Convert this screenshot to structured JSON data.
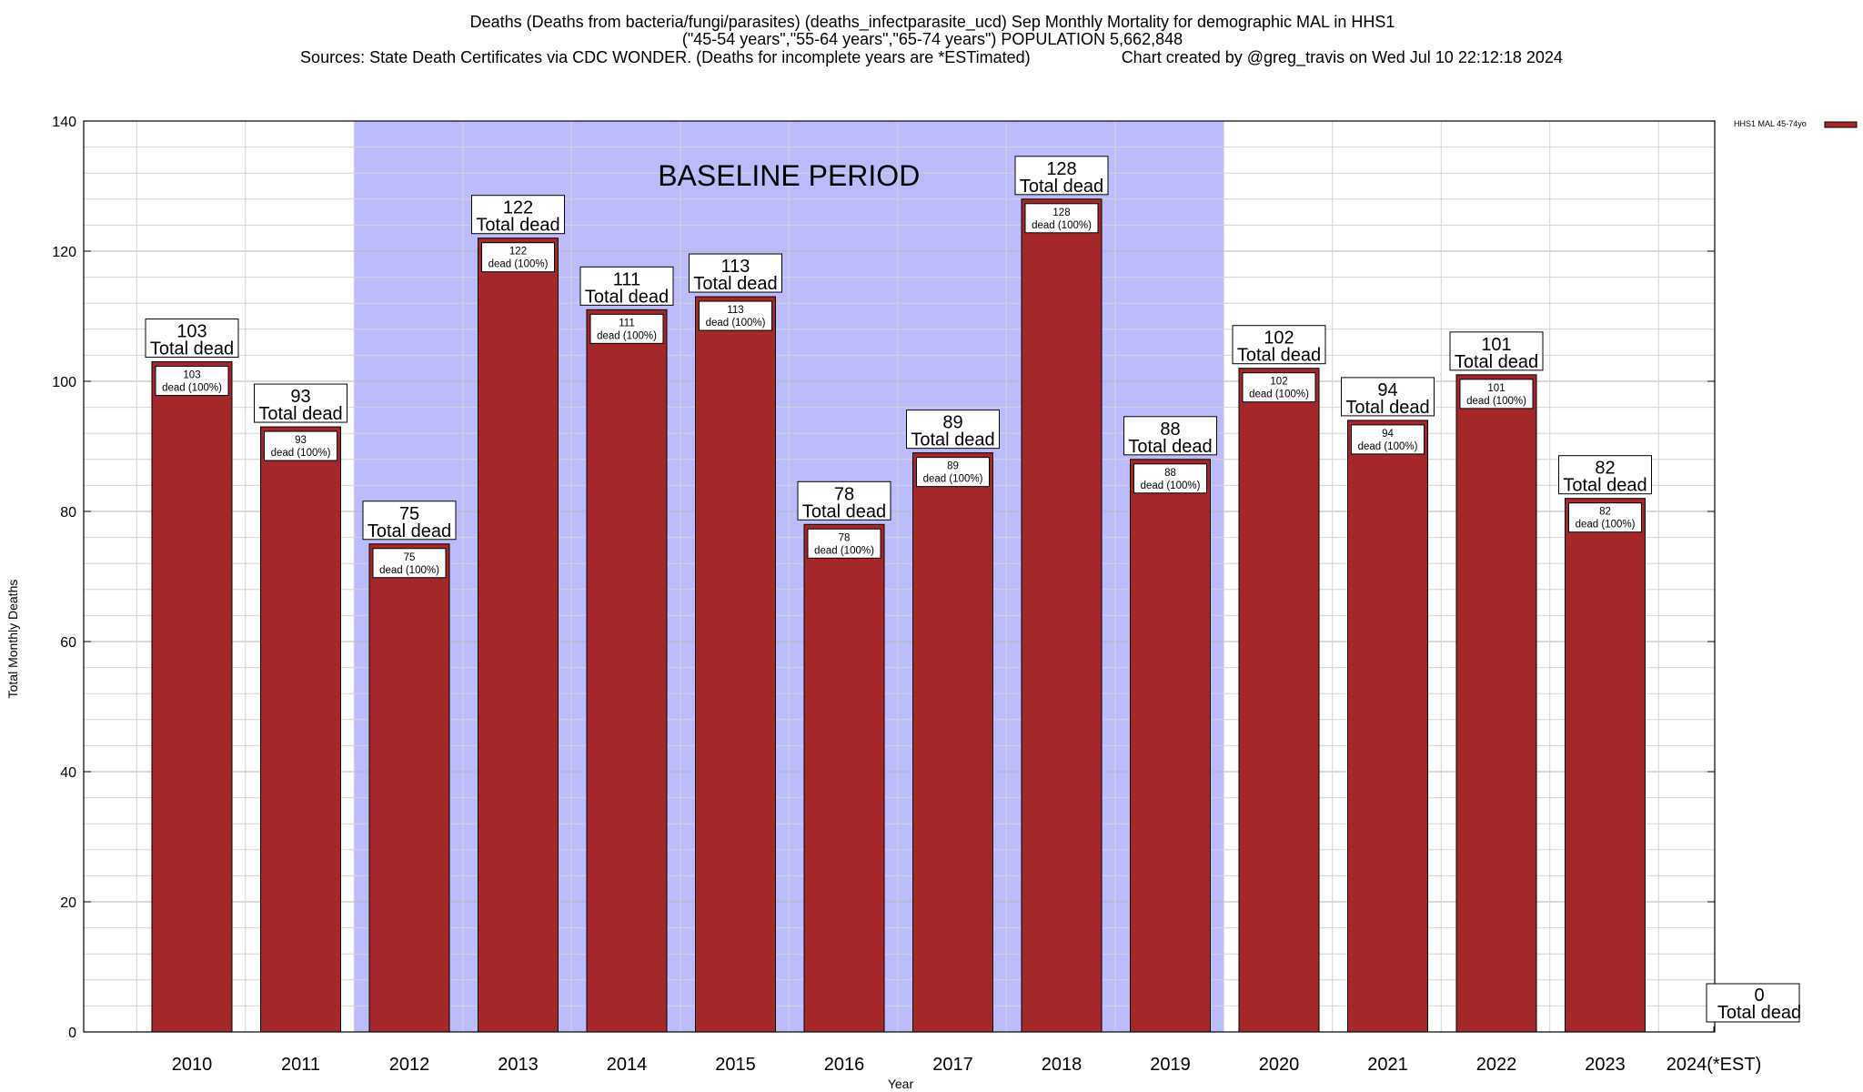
{
  "chart_data": {
    "type": "bar",
    "title": "Deaths (Deaths from bacteria/fungi/parasites) (deaths_infectparasite_ucd) Sep Monthly Mortality for demographic MAL in HHS1",
    "subtitle": "(\"45-54 years\",\"55-64 years\",\"65-74 years\") POPULATION 5,662,848",
    "source_text": "Sources: State Death Certificates via CDC WONDER. (Deaths for incomplete years are *ESTimated)",
    "credit_text": "Chart created by @greg_travis on Wed Jul 10 22:12:18 2024",
    "xlabel": "Year",
    "ylabel": "Total Monthly Deaths",
    "ylim": [
      0,
      140
    ],
    "yticks": [
      0,
      20,
      40,
      60,
      80,
      100,
      120,
      140
    ],
    "grid": true,
    "legend_position": "top-right",
    "categories": [
      "2010",
      "2011",
      "2012",
      "2013",
      "2014",
      "2015",
      "2016",
      "2017",
      "2018",
      "2019",
      "2020",
      "2021",
      "2022",
      "2023",
      "2024(*EST)"
    ],
    "series": [
      {
        "name": "HHS1 MAL 45-74yo",
        "color": "#a4282a",
        "values": [
          103,
          93,
          75,
          122,
          111,
          113,
          78,
          89,
          128,
          88,
          102,
          94,
          101,
          82,
          0
        ]
      }
    ],
    "top_label_suffix": "Total dead",
    "inner_label_suffix": "dead (100%)",
    "baseline": {
      "label": "BASELINE PERIOD",
      "start": "2012",
      "end": "2019",
      "color": "#bcbcfc"
    }
  }
}
